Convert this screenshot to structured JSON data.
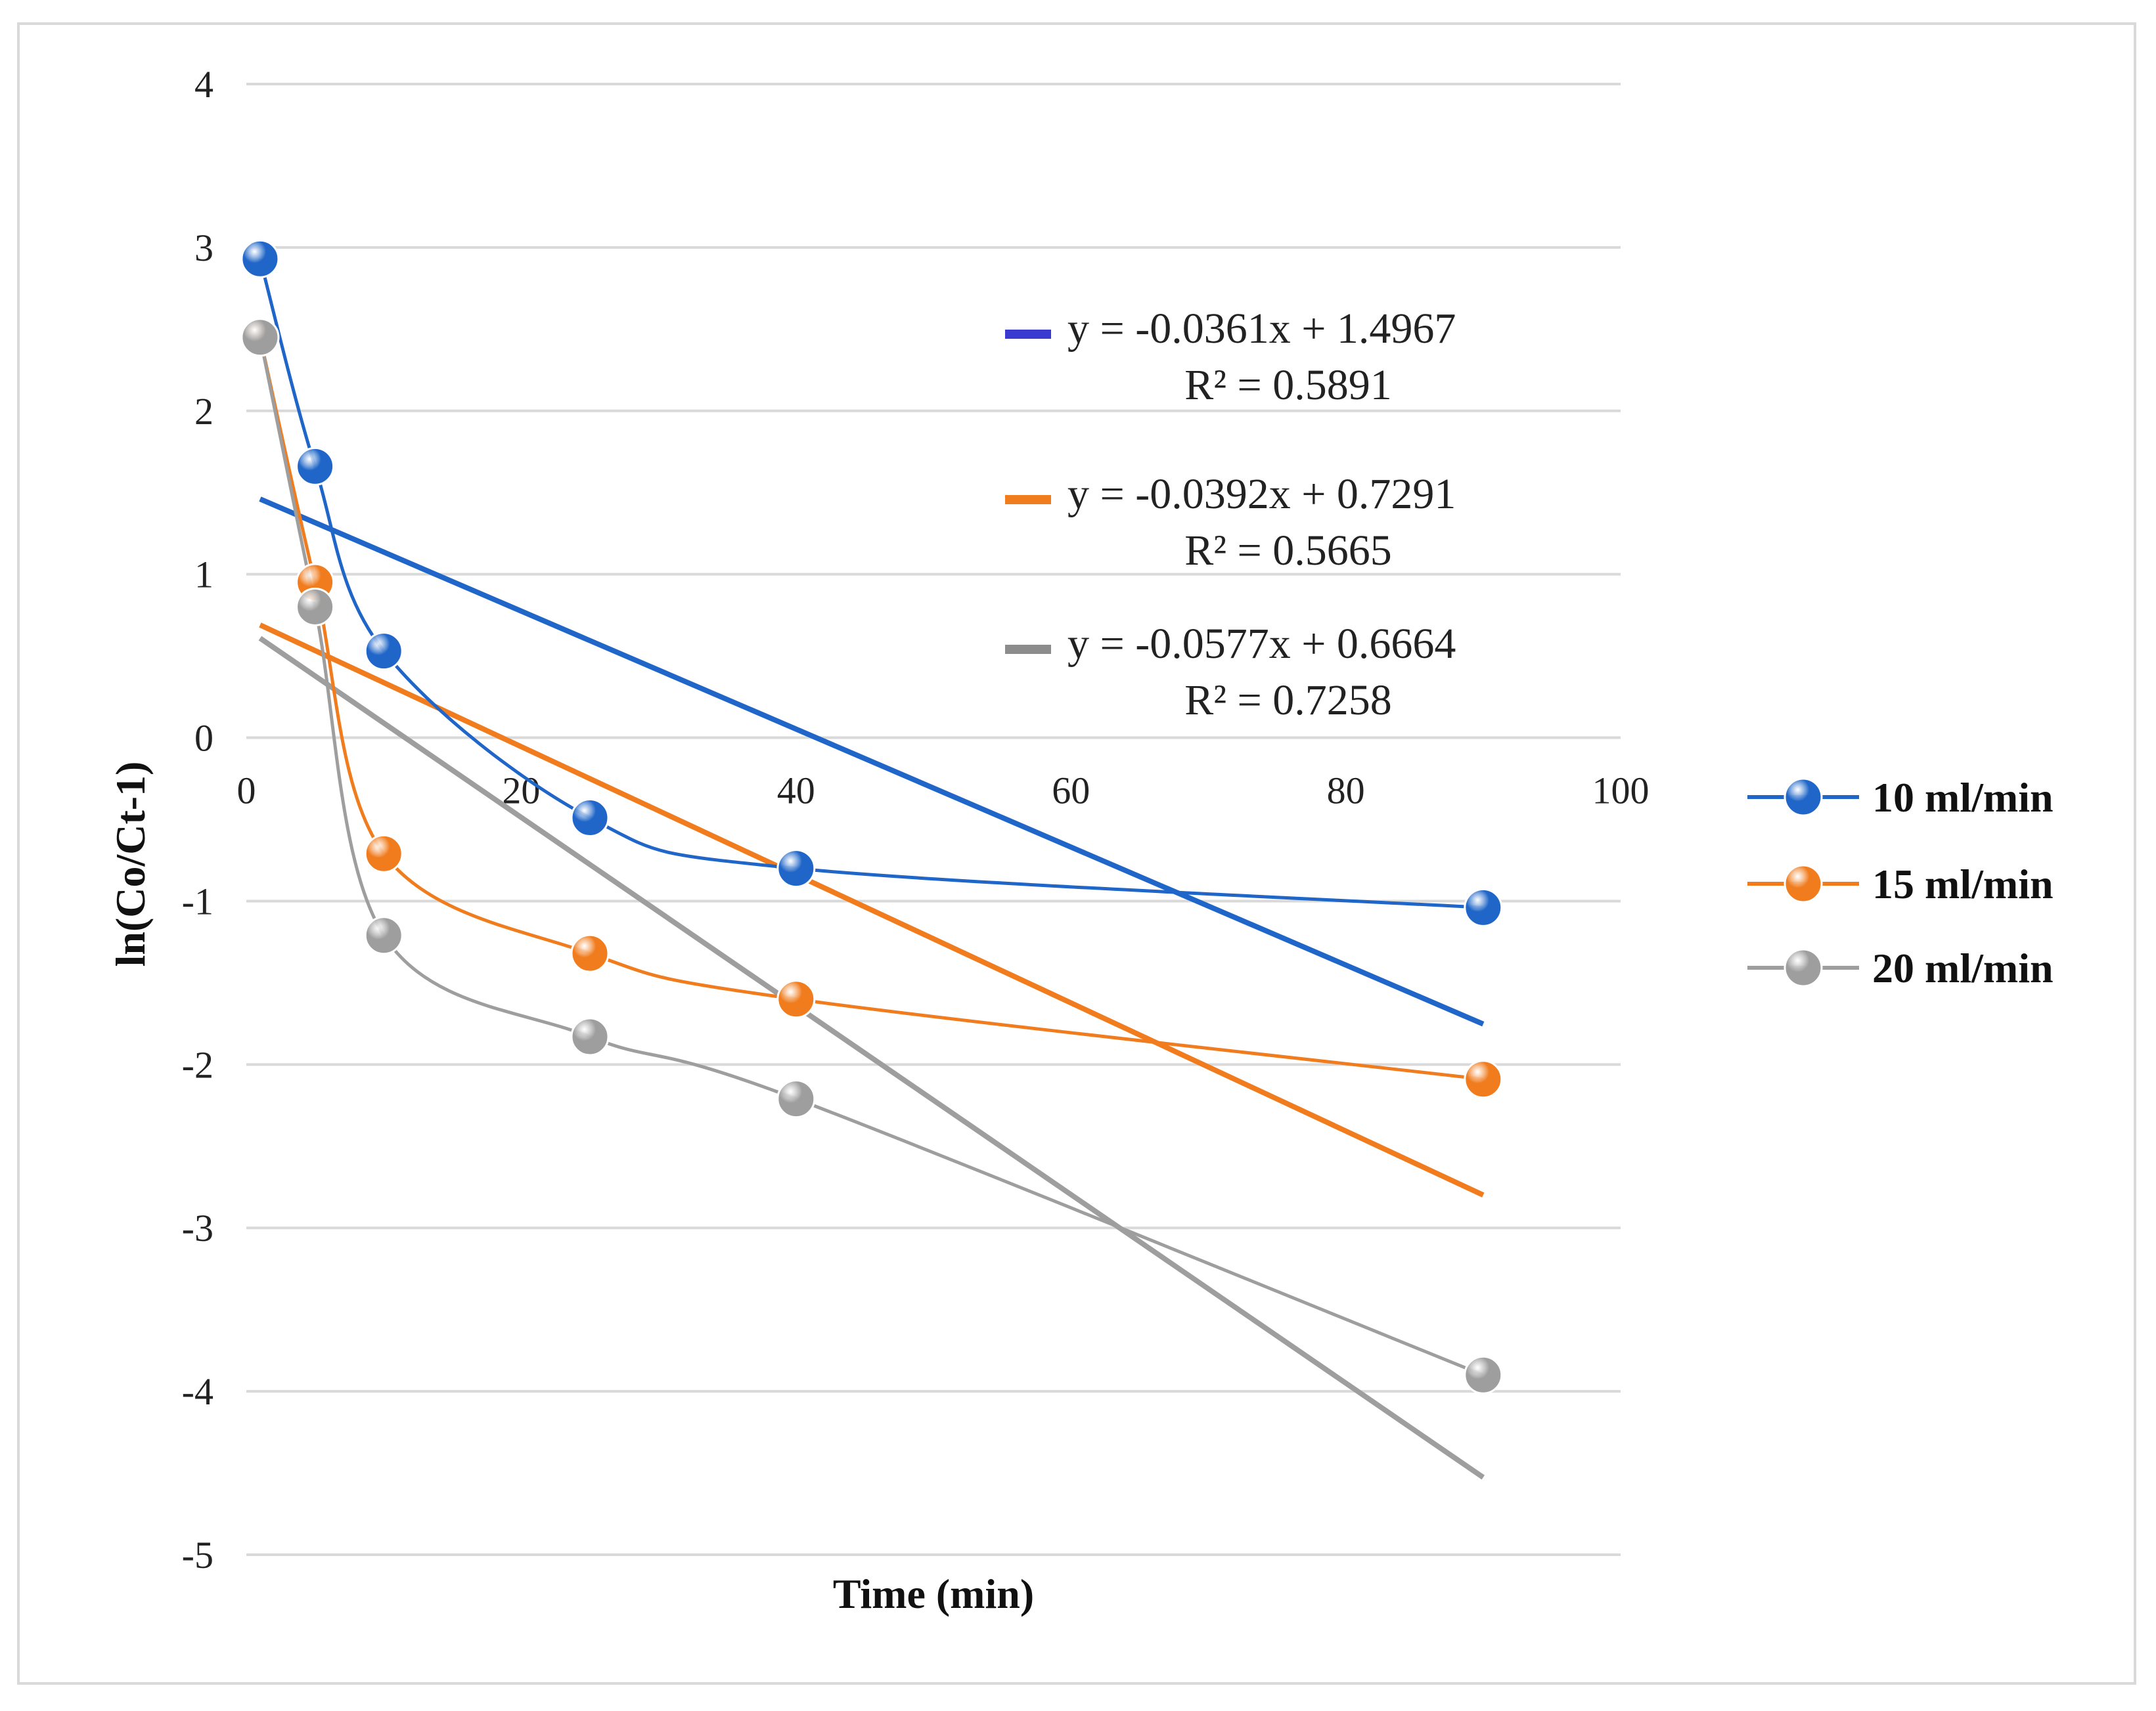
{
  "chart_data": {
    "type": "scatter",
    "title": "",
    "xlabel": "Time (min)",
    "ylabel": "ln(Co/Ct-1)",
    "xlim": [
      0,
      100
    ],
    "ylim": [
      -5,
      4
    ],
    "xticks": [
      0,
      20,
      40,
      60,
      80,
      100
    ],
    "yticks": [
      4,
      3,
      2,
      1,
      0,
      -1,
      -2,
      -3,
      -4,
      -5
    ],
    "grid": true,
    "legend_position": "right",
    "series": [
      {
        "name": "10 ml/min",
        "color": "#1f66c8",
        "x": [
          1,
          5,
          10,
          25,
          40,
          90
        ],
        "y": [
          2.93,
          1.66,
          0.53,
          -0.49,
          -0.8,
          -1.04
        ],
        "trendline": {
          "slope": -0.0361,
          "intercept": 1.4967,
          "equation": "y = -0.0361x + 1.4967",
          "r2": "R² = 0.5891",
          "swatch_color": "#3a3ad1"
        }
      },
      {
        "name": "15 ml/min",
        "color": "#f07c1e",
        "x": [
          1,
          5,
          10,
          25,
          40,
          90
        ],
        "y": [
          2.45,
          0.95,
          -0.71,
          -1.32,
          -1.6,
          -2.09
        ],
        "trendline": {
          "slope": -0.0392,
          "intercept": 0.7291,
          "equation": "y = -0.0392x + 0.7291",
          "r2": "R² = 0.5665",
          "swatch_color": "#f07c1e"
        }
      },
      {
        "name": "20 ml/min",
        "color": "#9e9e9e",
        "x": [
          1,
          5,
          10,
          25,
          40,
          90
        ],
        "y": [
          2.45,
          0.8,
          -1.21,
          -1.83,
          -2.21,
          -3.9
        ],
        "trendline": {
          "slope": -0.0577,
          "intercept": 0.6664,
          "equation": "y = -0.0577x + 0.6664",
          "r2": "R² = 0.7258",
          "swatch_color": "#8c8c8c"
        }
      }
    ]
  }
}
